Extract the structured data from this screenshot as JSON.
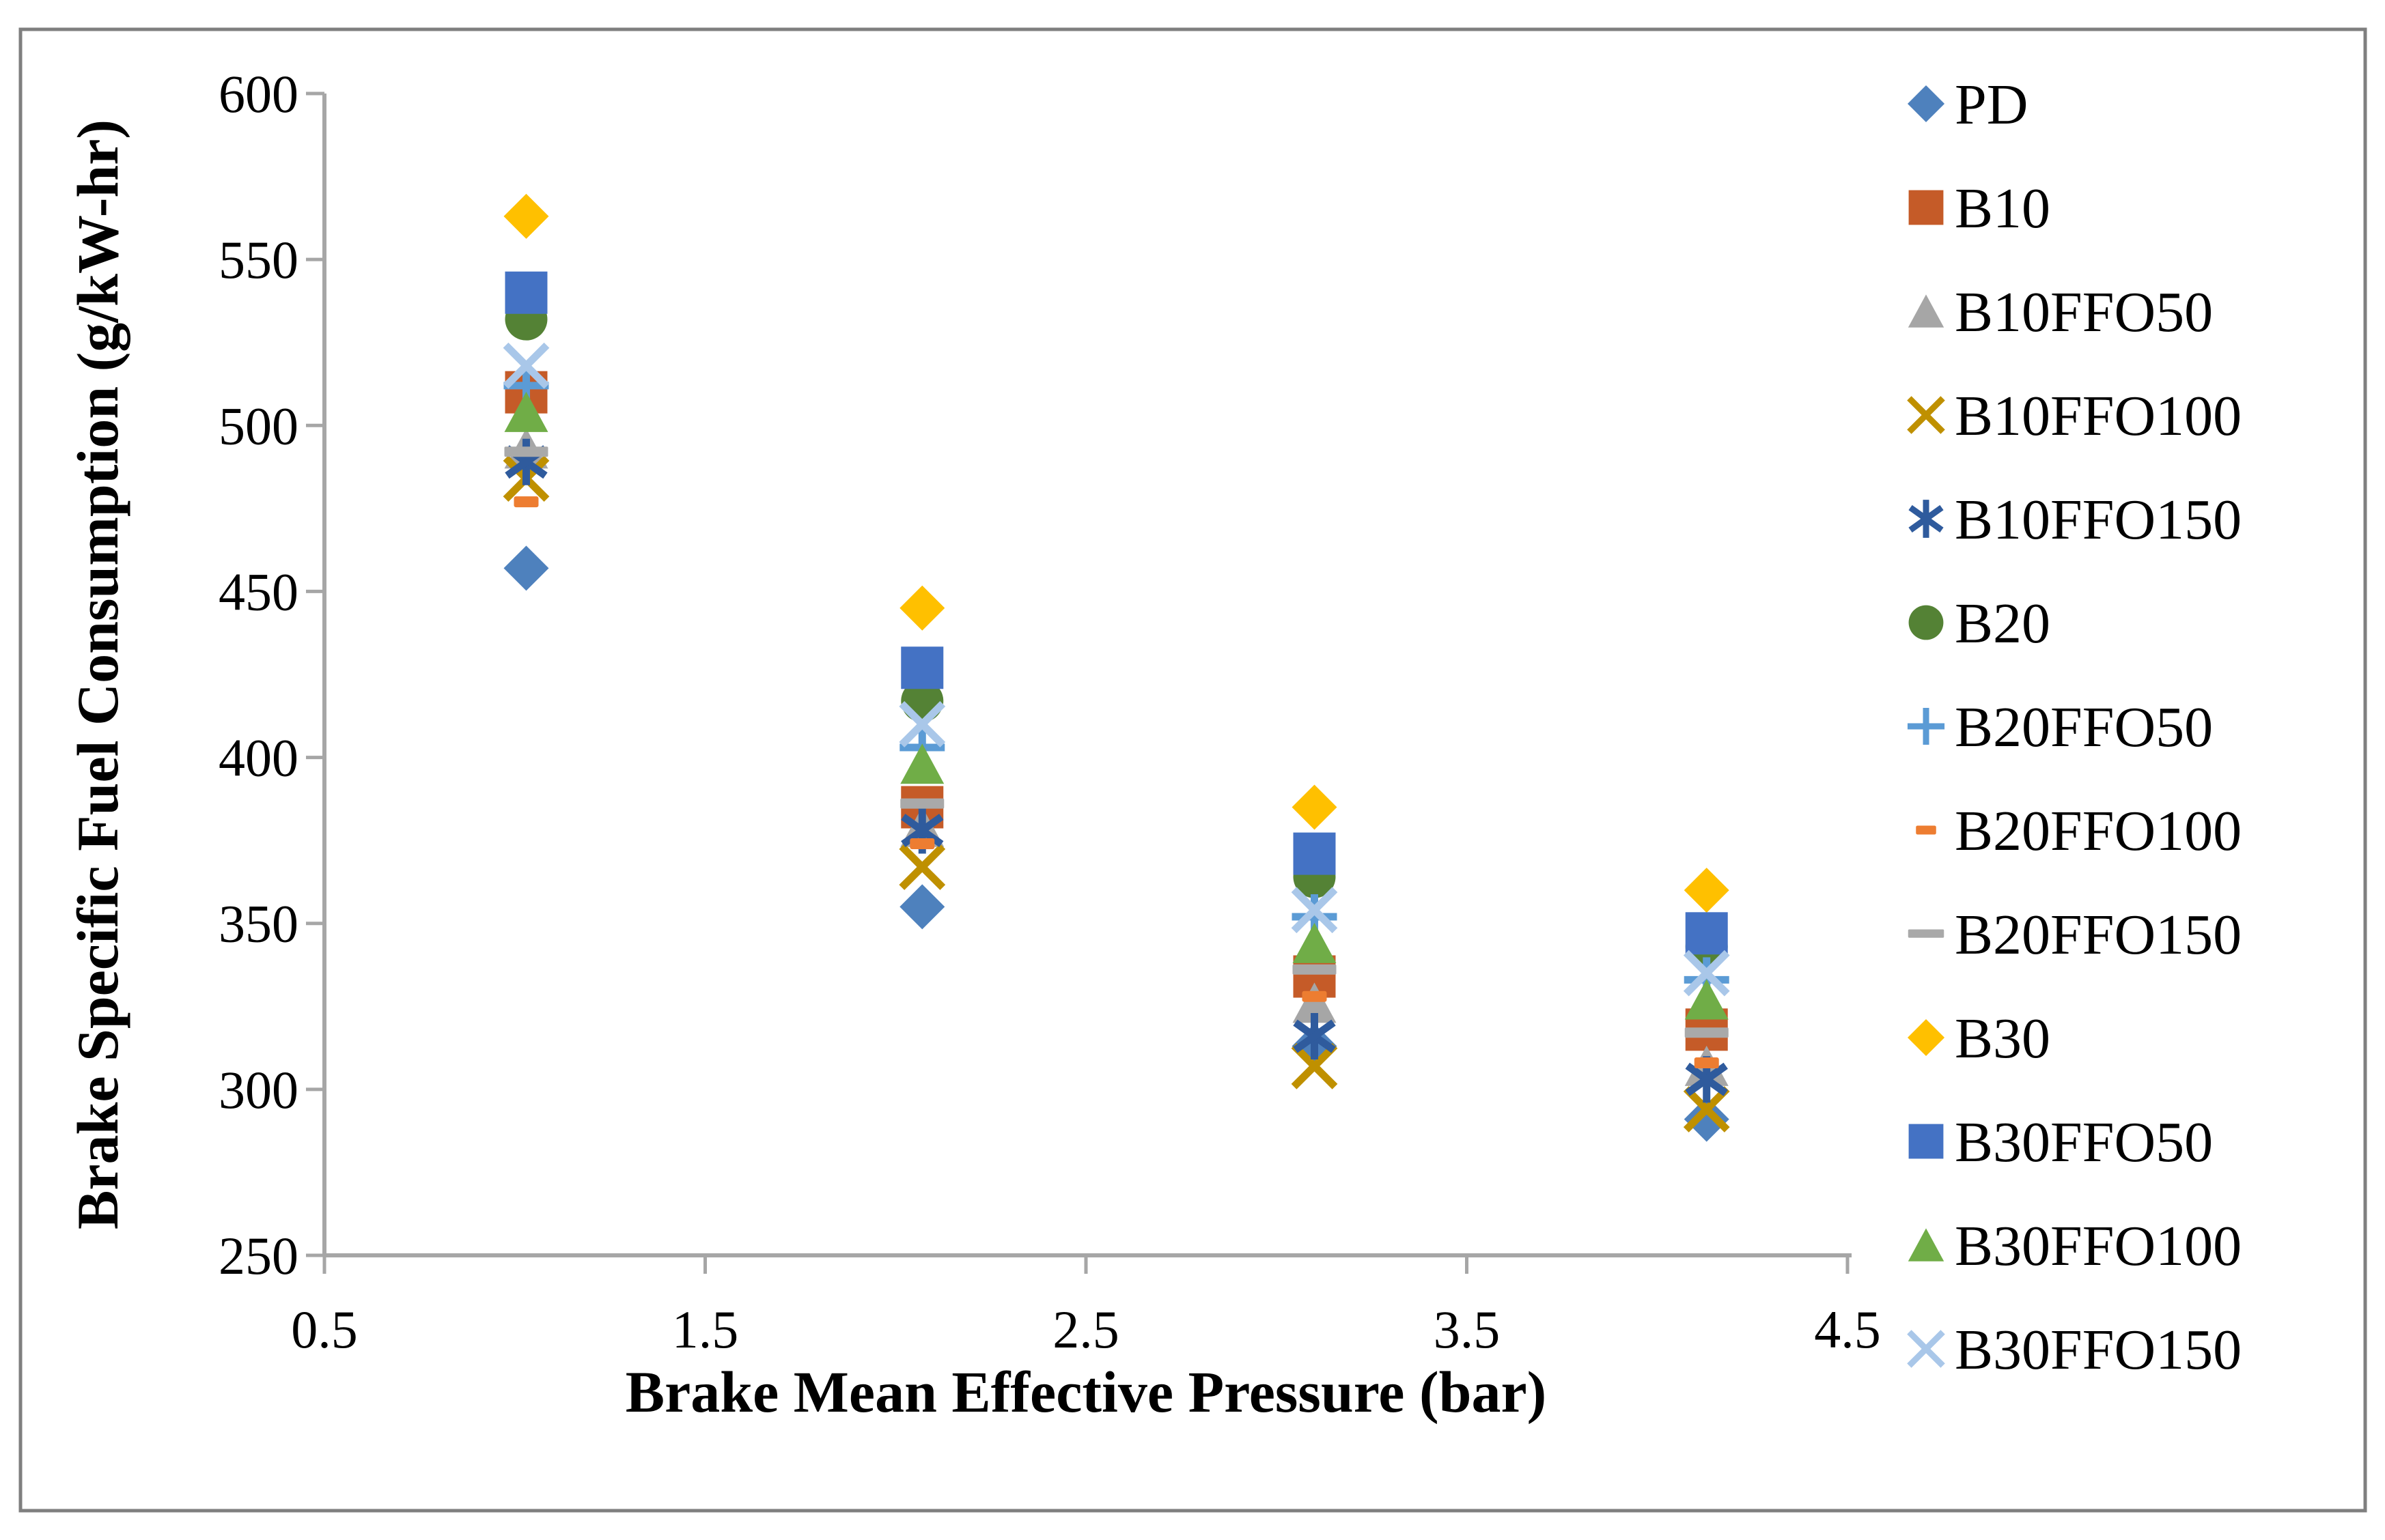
{
  "chart_data": {
    "type": "scatter",
    "title": "",
    "xlabel": "Brake Mean Effective Pressure (bar)",
    "ylabel": "Brake Specific Fuel Consumption (g/kW-hr)",
    "xlim": [
      0.5,
      4.5
    ],
    "ylim": [
      250,
      600
    ],
    "x_ticks": [
      "0.5",
      "1.5",
      "2.5",
      "3.5",
      "4.5"
    ],
    "y_ticks": [
      "600",
      "550",
      "500",
      "450",
      "400",
      "350",
      "300",
      "250"
    ],
    "grid": false,
    "legend_position": "right",
    "x": [
      1.03,
      2.07,
      3.1,
      4.13
    ],
    "series": [
      {
        "name": "PD",
        "marker": "diamond",
        "color": "#4E81BD",
        "values": [
          457,
          355,
          313,
          291
        ]
      },
      {
        "name": "B10",
        "marker": "square",
        "color": "#C55B28",
        "values": [
          510,
          385,
          334,
          318
        ]
      },
      {
        "name": "B10FFO50",
        "marker": "triangle",
        "color": "#A6A6A6",
        "values": [
          493,
          379,
          326,
          307
        ]
      },
      {
        "name": "B10FFO100",
        "marker": "xcross",
        "color": "#BF9000",
        "values": [
          484,
          367,
          307,
          294
        ]
      },
      {
        "name": "B10FFO150",
        "marker": "asterisk",
        "color": "#2F5B9D",
        "values": [
          489,
          378,
          316,
          303
        ]
      },
      {
        "name": "B20",
        "marker": "circle",
        "color": "#548235",
        "values": [
          532,
          417,
          364,
          343
        ]
      },
      {
        "name": "B20FFO50",
        "marker": "plus",
        "color": "#5B9BD5",
        "values": [
          512,
          403,
          352,
          333
        ]
      },
      {
        "name": "B20FFO100",
        "marker": "dash-short",
        "color": "#ED7D31",
        "values": [
          477,
          374,
          328,
          308
        ]
      },
      {
        "name": "B20FFO150",
        "marker": "dash",
        "color": "#A9A9A9",
        "values": [
          492,
          386,
          336,
          317
        ]
      },
      {
        "name": "B30",
        "marker": "diamond",
        "color": "#FFC000",
        "values": [
          563,
          445,
          385,
          360
        ]
      },
      {
        "name": "B30FFO50",
        "marker": "square",
        "color": "#4472C4",
        "values": [
          540,
          427,
          371,
          347
        ]
      },
      {
        "name": "B30FFO100",
        "marker": "triangle",
        "color": "#70AD47",
        "values": [
          504,
          398,
          344,
          327
        ]
      },
      {
        "name": "B30FFO150",
        "marker": "xcross",
        "color": "#A9C7E9",
        "values": [
          518,
          410,
          354,
          335
        ]
      }
    ],
    "colors": {
      "axis_line": "#A6A6A6",
      "outer_border": "#7F7F7F",
      "text": "#000000"
    }
  }
}
